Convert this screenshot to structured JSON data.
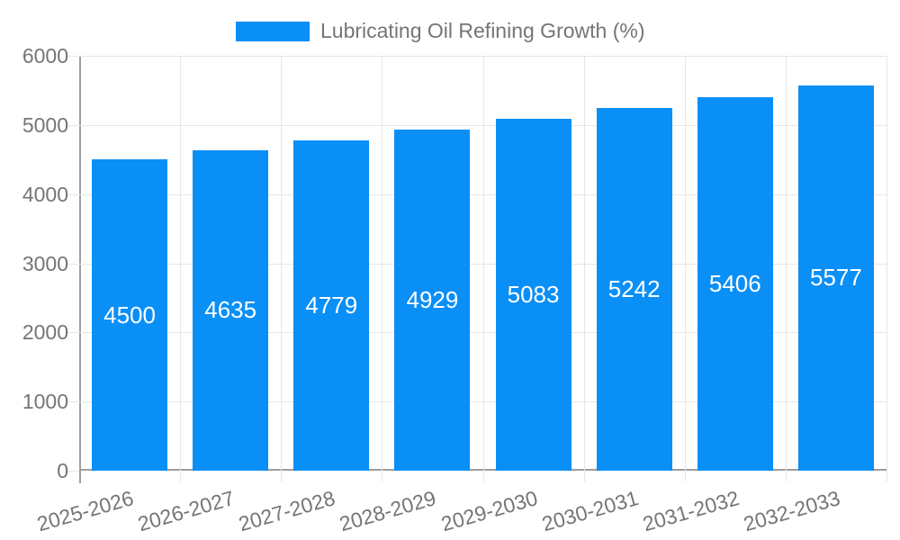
{
  "legend": {
    "label": "Lubricating Oil Refining Growth (%)",
    "position": "top"
  },
  "chart_data": {
    "type": "bar",
    "title": "",
    "categories": [
      "2025-2026",
      "2026-2027",
      "2027-2028",
      "2028-2029",
      "2029-2030",
      "2030-2031",
      "2031-2032",
      "2032-2033"
    ],
    "values": [
      4500,
      4635,
      4779,
      4929,
      5083,
      5242,
      5406,
      5577
    ],
    "series_name": "Lubricating Oil Refining Growth (%)",
    "xlabel": "",
    "ylabel": "",
    "ylim": [
      0,
      6000
    ],
    "y_ticks": [
      0,
      1000,
      2000,
      3000,
      4000,
      5000,
      6000
    ],
    "grid": true,
    "legend_position": "top",
    "x_label_rotation_deg": -16,
    "bar_color": "#0a8ff7",
    "value_label_color": "#ffffff",
    "axis_text_color": "#757575",
    "gridline_color": "#e6e6e6",
    "axis_line_color": "#9e9e9e",
    "background_color": "#ffffff"
  }
}
